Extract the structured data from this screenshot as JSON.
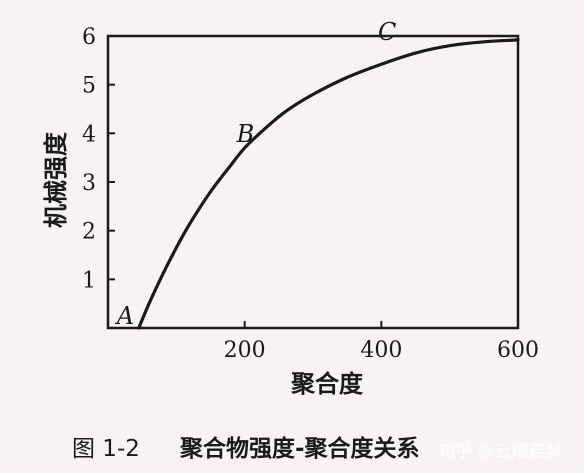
{
  "chart_data": {
    "type": "line",
    "xlabel": "聚合度",
    "ylabel": "机械强度",
    "xlim": [
      0,
      600
    ],
    "ylim": [
      0,
      6
    ],
    "x_ticks": [
      200,
      400,
      600
    ],
    "y_ticks": [
      1,
      2,
      3,
      4,
      5,
      6
    ],
    "grid": false,
    "series": [
      {
        "x": [
          45,
          60,
          80,
          100,
          120,
          150,
          180,
          200,
          230,
          260,
          300,
          350,
          400,
          450,
          500,
          550,
          600
        ],
        "values": [
          0.0,
          0.5,
          1.1,
          1.65,
          2.15,
          2.8,
          3.35,
          3.7,
          4.1,
          4.45,
          4.8,
          5.15,
          5.42,
          5.65,
          5.8,
          5.88,
          5.92
        ]
      }
    ],
    "annotations": [
      {
        "label": "A",
        "x": 45,
        "y": 0.0
      },
      {
        "label": "B",
        "x": 200,
        "y": 3.7
      },
      {
        "label": "C",
        "x": 480,
        "y": 5.75
      }
    ]
  },
  "caption": {
    "figure_number": "图 1-2",
    "title": "聚合物强度-聚合度关系"
  },
  "watermark": "知乎 @云烟若梦"
}
